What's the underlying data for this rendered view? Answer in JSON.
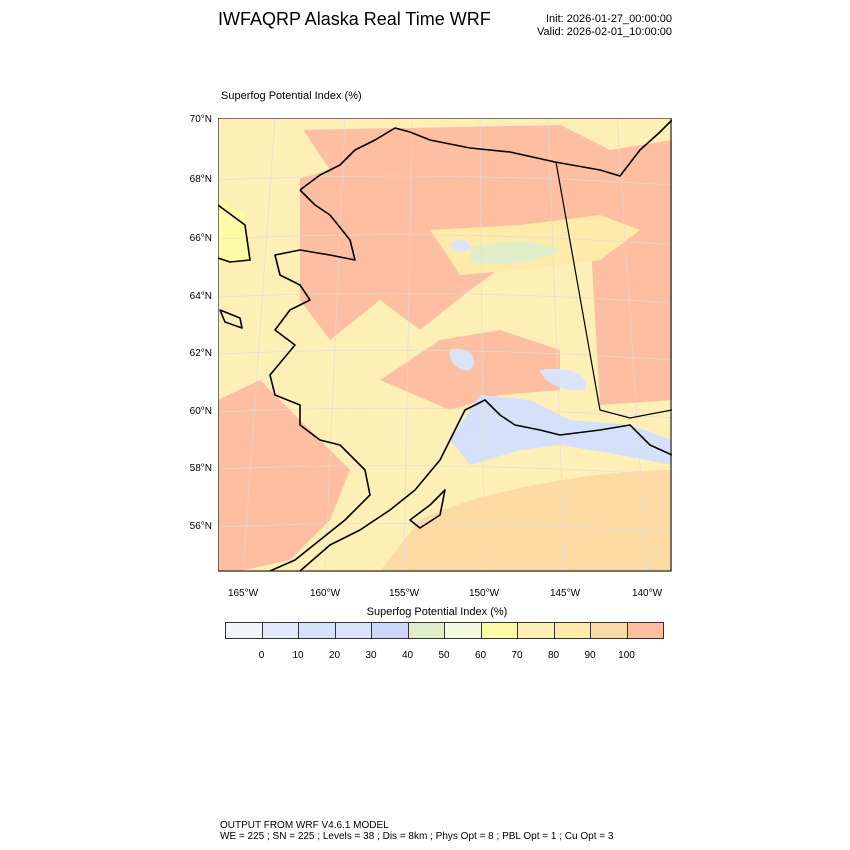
{
  "header": {
    "title": "IWFAQRP Alaska Real Time WRF",
    "init": "Init: 2026-01-27_00:00:00",
    "valid": "Valid: 2026-02-01_10:00:00"
  },
  "plot": {
    "subtitle": "Superfog Potential Index   (%)",
    "lat_labels": [
      "70°N",
      "68°N",
      "66°N",
      "64°N",
      "62°N",
      "60°N",
      "58°N",
      "56°N"
    ],
    "lon_labels": [
      "165°W",
      "160°W",
      "155°W",
      "150°W",
      "145°W",
      "140°W"
    ]
  },
  "colorbar": {
    "title": "Superfog Potential Index  (%)",
    "colors": [
      "#f1f4f9",
      "#e3e9fb",
      "#d5e0fb",
      "#d9e4fb",
      "#ccd6f8",
      "#e1edc9",
      "#f4fadd",
      "#fefba6",
      "#feefb6",
      "#feeaa9",
      "#fdd9a4",
      "#fdbea1"
    ],
    "labels": [
      "0",
      "10",
      "20",
      "30",
      "40",
      "50",
      "60",
      "70",
      "80",
      "90",
      "100"
    ]
  },
  "footer": {
    "line1": "OUTPUT FROM WRF V4.6.1 MODEL",
    "line2": "WE = 225 ; SN = 225 ; Levels = 38 ; Dis = 8km ; Phys Opt = 8 ; PBL Opt = 1 ; Cu Opt = 3"
  }
}
